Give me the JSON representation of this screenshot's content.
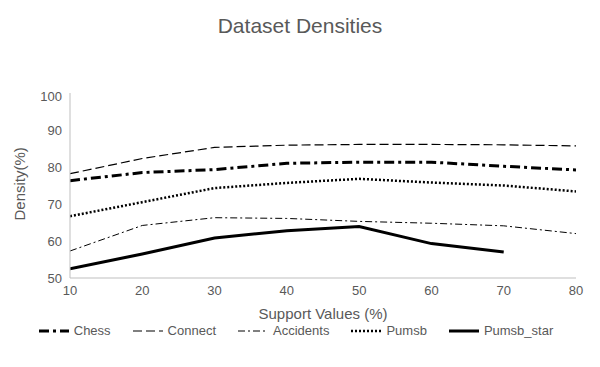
{
  "chart_data": {
    "type": "line",
    "title": "Dataset Densities",
    "x_label": "Support Values (%)",
    "y_label": "Density(%)",
    "x": [
      10,
      20,
      30,
      40,
      50,
      60,
      70,
      80
    ],
    "xlim": [
      10,
      80
    ],
    "xticks": [
      10,
      20,
      30,
      40,
      50,
      60,
      70,
      80
    ],
    "ylim": [
      50,
      100
    ],
    "yticks": [
      50,
      60,
      70,
      80,
      90,
      100
    ],
    "grid": false,
    "legend": "bottom",
    "series": [
      {
        "name": "Chess",
        "color": "#000000",
        "line_style": "dashdot_bold",
        "values": [
          76.3,
          78.5,
          79.3,
          81.0,
          81.3,
          81.3,
          80.2,
          79.2
        ]
      },
      {
        "name": "Connect",
        "color": "#000000",
        "line_style": "dashed",
        "values": [
          78.2,
          82.3,
          85.3,
          85.9,
          86.1,
          86.1,
          86.0,
          85.7
        ]
      },
      {
        "name": "Accidents",
        "color": "#000000",
        "line_style": "dashdot",
        "values": [
          57.3,
          64.2,
          66.3,
          66.1,
          65.3,
          64.8,
          64.1,
          62.0
        ]
      },
      {
        "name": "Pumsb",
        "color": "#000000",
        "line_style": "dotted",
        "values": [
          66.7,
          70.5,
          74.3,
          75.7,
          76.8,
          75.8,
          75.0,
          73.4
        ]
      },
      {
        "name": "Pumsb_star",
        "color": "#000000",
        "line_style": "solid_bold",
        "values": [
          52.5,
          56.5,
          60.8,
          62.8,
          63.9,
          59.3,
          57.0,
          null
        ]
      }
    ]
  }
}
